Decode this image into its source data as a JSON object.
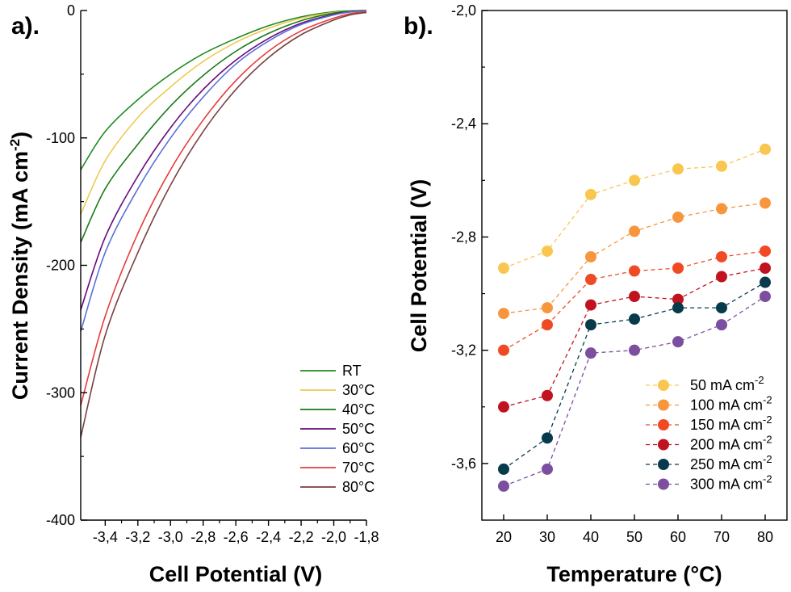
{
  "chart_data": [
    {
      "panel_label": "a).",
      "type": "line",
      "xlabel": "Cell Potential (V)",
      "ylabel_main": "Current Density (mA cm",
      "ylabel_sup": "-2",
      "ylabel_end": ")",
      "xlim": [
        -3.55,
        -1.8
      ],
      "ylim": [
        -400,
        0
      ],
      "x_ticks": [
        -3.4,
        -3.2,
        -3.0,
        -2.8,
        -2.6,
        -2.4,
        -2.2,
        -2.0,
        -1.8
      ],
      "x_tick_labels": [
        "-3,4",
        "-3,2",
        "-3,0",
        "-2,8",
        "-2,6",
        "-2,4",
        "-2,2",
        "-2,0",
        "-1,8"
      ],
      "y_ticks": [
        0,
        -100,
        -200,
        -300,
        -400
      ],
      "y_tick_labels": [
        "0",
        "-100",
        "-200",
        "-300",
        "-400"
      ],
      "grid": false,
      "legend_position": "bottom-right",
      "series": [
        {
          "name": "RT",
          "color": "#1e8a1e",
          "x": [
            -3.55,
            -3.4,
            -3.2,
            -3.0,
            -2.8,
            -2.6,
            -2.4,
            -2.2,
            -2.0,
            -1.9,
            -1.8
          ],
          "y": [
            -125,
            -95,
            -70,
            -50,
            -34,
            -22,
            -12,
            -5,
            -1,
            -0.3,
            0
          ]
        },
        {
          "name": "30°C",
          "color": "#f0c850",
          "x": [
            -3.55,
            -3.4,
            -3.2,
            -3.0,
            -2.8,
            -2.6,
            -2.4,
            -2.2,
            -2.0,
            -1.9,
            -1.8
          ],
          "y": [
            -160,
            -118,
            -84,
            -60,
            -40,
            -25,
            -14,
            -6,
            -1.5,
            -0.5,
            0
          ]
        },
        {
          "name": "40°C",
          "color": "#1a7a1a",
          "x": [
            -3.55,
            -3.4,
            -3.2,
            -3.0,
            -2.8,
            -2.6,
            -2.4,
            -2.2,
            -2.0,
            -1.9,
            -1.8
          ],
          "y": [
            -182,
            -140,
            -105,
            -75,
            -51,
            -32,
            -18,
            -8,
            -2,
            -0.6,
            0
          ]
        },
        {
          "name": "50°C",
          "color": "#6a0a7a",
          "x": [
            -3.55,
            -3.4,
            -3.2,
            -3.0,
            -2.8,
            -2.6,
            -2.4,
            -2.2,
            -2.0,
            -1.9,
            -1.8
          ],
          "y": [
            -235,
            -178,
            -130,
            -92,
            -62,
            -39,
            -22,
            -10,
            -3,
            -1,
            -0.2
          ]
        },
        {
          "name": "60°C",
          "color": "#5a70d8",
          "x": [
            -3.55,
            -3.4,
            -3.2,
            -3.0,
            -2.8,
            -2.6,
            -2.4,
            -2.2,
            -2.0,
            -1.9,
            -1.8
          ],
          "y": [
            -252,
            -190,
            -140,
            -100,
            -68,
            -42,
            -24,
            -11,
            -3.5,
            -1.2,
            -0.3
          ]
        },
        {
          "name": "70°C",
          "color": "#e63c3c",
          "x": [
            -3.55,
            -3.4,
            -3.2,
            -3.0,
            -2.8,
            -2.6,
            -2.4,
            -2.2,
            -2.0,
            -1.9,
            -1.8
          ],
          "y": [
            -310,
            -240,
            -175,
            -125,
            -86,
            -55,
            -32,
            -16,
            -6,
            -2.5,
            -1
          ]
        },
        {
          "name": "80°C",
          "color": "#7a4040",
          "x": [
            -3.55,
            -3.4,
            -3.2,
            -3.0,
            -2.8,
            -2.6,
            -2.4,
            -2.2,
            -2.0,
            -1.9,
            -1.8
          ],
          "y": [
            -335,
            -255,
            -190,
            -137,
            -95,
            -62,
            -37,
            -19,
            -7.5,
            -3.5,
            -1.5
          ]
        }
      ]
    },
    {
      "panel_label": "b).",
      "type": "line",
      "xlabel": "Temperature (°C)",
      "ylabel": "Cell Potential (V)",
      "xlim": [
        15,
        85
      ],
      "ylim": [
        -3.8,
        -2.0
      ],
      "x_ticks": [
        20,
        30,
        40,
        50,
        60,
        70,
        80
      ],
      "x_tick_labels": [
        "20",
        "30",
        "40",
        "50",
        "60",
        "70",
        "80"
      ],
      "y_ticks": [
        -2.0,
        -2.4,
        -2.8,
        -3.2,
        -3.6
      ],
      "y_tick_labels": [
        "-2,0",
        "-2,4",
        "-2,8",
        "-3,2",
        "-3,6"
      ],
      "grid": false,
      "legend_position": "bottom-right",
      "categories": [
        20,
        30,
        40,
        50,
        60,
        70,
        80
      ],
      "series": [
        {
          "name_main": "50 mA cm",
          "name_sup": "-2",
          "color": "#f9c74f",
          "values": [
            -2.91,
            -2.85,
            -2.65,
            -2.6,
            -2.56,
            -2.55,
            -2.49
          ]
        },
        {
          "name_main": "100 mA cm",
          "name_sup": "-2",
          "color": "#f8963e",
          "values": [
            -3.07,
            -3.05,
            -2.87,
            -2.78,
            -2.73,
            -2.7,
            -2.68
          ]
        },
        {
          "name_main": "150 mA cm",
          "name_sup": "-2",
          "color": "#ef4a23",
          "values": [
            -3.2,
            -3.11,
            -2.95,
            -2.92,
            -2.91,
            -2.87,
            -2.85
          ]
        },
        {
          "name_main": "200 mA cm",
          "name_sup": "-2",
          "color": "#c1121f",
          "values": [
            -3.4,
            -3.36,
            -3.04,
            -3.01,
            -3.02,
            -2.94,
            -2.91
          ]
        },
        {
          "name_main": "250 mA cm",
          "name_sup": "-2",
          "color": "#073b4c",
          "values": [
            -3.62,
            -3.51,
            -3.11,
            -3.09,
            -3.05,
            -3.05,
            -2.96
          ]
        },
        {
          "name_main": "300 mA cm",
          "name_sup": "-2",
          "color": "#7b4ea0",
          "values": [
            -3.68,
            -3.62,
            -3.21,
            -3.2,
            -3.17,
            -3.11,
            -3.01
          ]
        }
      ]
    }
  ]
}
